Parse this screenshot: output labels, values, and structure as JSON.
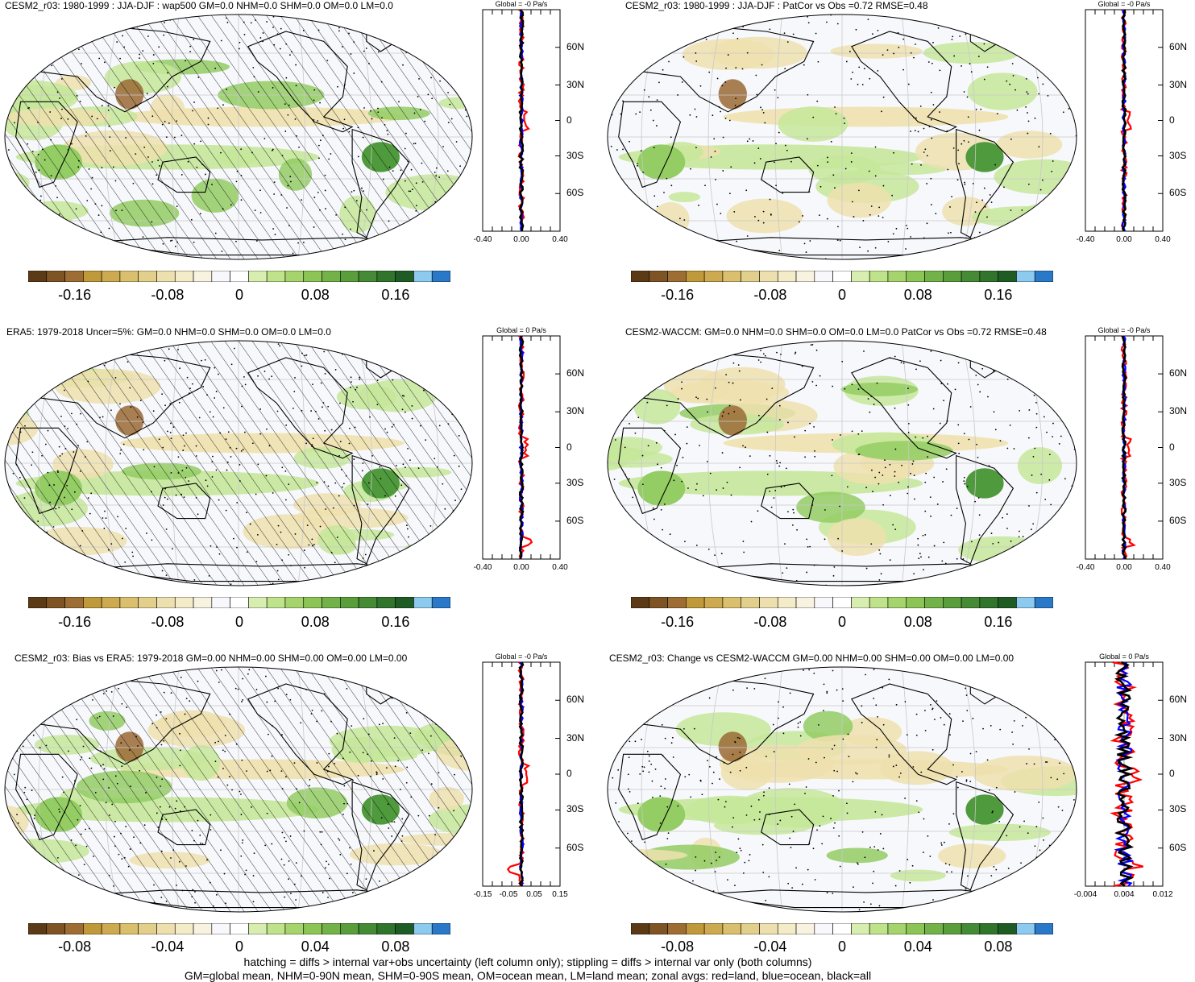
{
  "panels": [
    {
      "id": "p1",
      "title": "CESM2_r03: 1980-1999 : JJA-DJF : wap500 GM=0.0 NHM=0.0 SHM=0.0 OM=0.0 LM=0.0",
      "colorbar_labels": [
        "-0.16",
        "-0.08",
        "0",
        "0.08",
        "0.16"
      ],
      "zonal_title": "Global = -0 Pa/s",
      "zonal_lat_labels": [
        "60N",
        "30N",
        "0",
        "30S",
        "60S"
      ],
      "zonal_x_labels": [
        "-0.40",
        "0.00",
        "0.40"
      ],
      "hatching": true
    },
    {
      "id": "p2",
      "title": "CESM2_r03: 1980-1999 : JJA-DJF : PatCor vs Obs =0.72 RMSE=0.48",
      "colorbar_labels": [
        "-0.16",
        "-0.08",
        "0",
        "0.08",
        "0.16"
      ],
      "zonal_title": "Global = -0 Pa/s",
      "zonal_lat_labels": [
        "60N",
        "30N",
        "0",
        "30S",
        "60S"
      ],
      "zonal_x_labels": [
        "-0.40",
        "0.00",
        "0.40"
      ],
      "hatching": false
    },
    {
      "id": "p3",
      "title": "ERA5: 1979-2018 Uncer=5%: GM=0.0 NHM=0.0 SHM=0.0 OM=0.0 LM=0.0",
      "colorbar_labels": [
        "-0.16",
        "-0.08",
        "0",
        "0.08",
        "0.16"
      ],
      "zonal_title": "Global = 0 Pa/s",
      "zonal_lat_labels": [
        "60N",
        "30N",
        "0",
        "30S",
        "60S"
      ],
      "zonal_x_labels": [
        "-0.40",
        "0.00",
        "0.40"
      ],
      "hatching": true
    },
    {
      "id": "p4",
      "title": "CESM2-WACCM: GM=0.0 NHM=0.0 SHM=0.0 OM=0.0 LM=0.0 PatCor vs Obs =0.72 RMSE=0.48",
      "colorbar_labels": [
        "-0.16",
        "-0.08",
        "0",
        "0.08",
        "0.16"
      ],
      "zonal_title": "Global = -0 Pa/s",
      "zonal_lat_labels": [
        "60N",
        "30N",
        "0",
        "30S",
        "60S"
      ],
      "zonal_x_labels": [
        "-0.40",
        "0.00",
        "0.40"
      ],
      "hatching": false
    },
    {
      "id": "p5",
      "title": "CESM2_r03: Bias vs ERA5: 1979-2018 GM=0.00 NHM=0.00 SHM=0.00 OM=0.00 LM=0.00",
      "colorbar_labels": [
        "-0.08",
        "-0.04",
        "0",
        "0.04",
        "0.08"
      ],
      "zonal_title": "Global = -0 Pa/s",
      "zonal_lat_labels": [
        "60N",
        "30N",
        "0",
        "30S",
        "60S"
      ],
      "zonal_x_labels": [
        "-0.15",
        "-0.05",
        "0.05",
        "0.15"
      ],
      "hatching": true
    },
    {
      "id": "p6",
      "title": "CESM2_r03: Change vs CESM2-WACCM GM=0.00 NHM=0.00 SHM=0.00 OM=0.00 LM=0.00",
      "colorbar_labels": [
        "-0.08",
        "-0.04",
        "0",
        "0.04",
        "0.08"
      ],
      "zonal_title": "Global = 0 Pa/s",
      "zonal_lat_labels": [
        "60N",
        "30N",
        "0",
        "30S",
        "60S"
      ],
      "zonal_x_labels": [
        "-0.004",
        "0.004",
        "0.012"
      ],
      "hatching": false
    }
  ],
  "colorbar_colors": [
    "#5c3a16",
    "#7e5424",
    "#9e6d34",
    "#c09a3a",
    "#cdaa50",
    "#d9bf6e",
    "#e3cf8c",
    "#ede0ae",
    "#f4ebc8",
    "#f8f3e0",
    "#f8f8fc",
    "#ffffff",
    "#d8eeb0",
    "#bfe38a",
    "#a5d46c",
    "#8cc456",
    "#72b248",
    "#5a9e3c",
    "#458a34",
    "#31742c",
    "#1f5c24",
    "#8ccaf0",
    "#2a78c8"
  ],
  "map_colors": {
    "ocean": "#f7f8fc",
    "green_light": "#c5e79a",
    "green_mid": "#93cd63",
    "green_dark": "#4f9a3c",
    "tan_light": "#eee1ae",
    "tan_dark": "#9a6a35",
    "blue": "#3a86d0"
  },
  "zonal_colors": {
    "land": "#ff0000",
    "ocean": "#0000ff",
    "all": "#000000"
  },
  "footer": {
    "line1": "hatching = diffs > internal var+obs uncertainty (left column only); stippling = diffs > internal var only (both columns)",
    "line2": "GM=global mean, NHM=0-90N mean, SHM=0-90S mean, OM=ocean mean, LM=land mean; zonal avgs: red=land, blue=ocean, black=all"
  }
}
